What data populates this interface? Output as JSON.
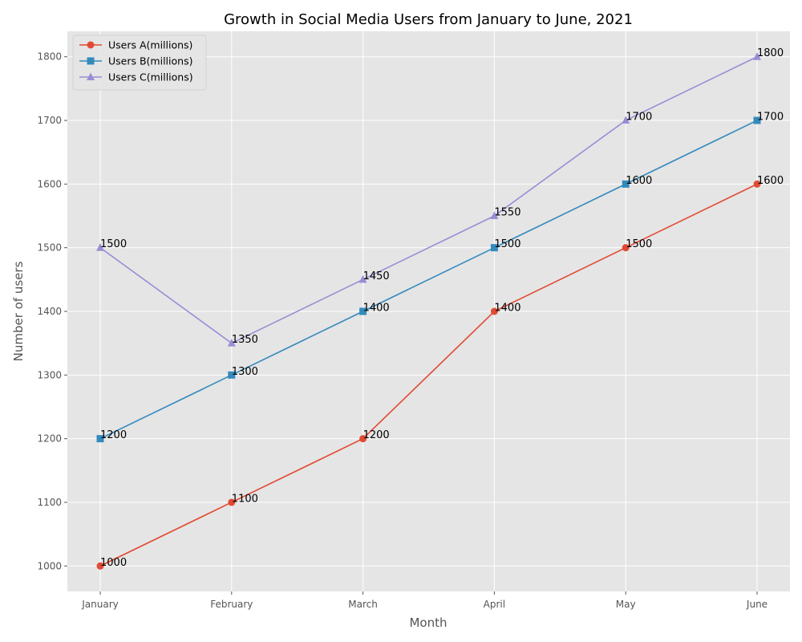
{
  "chart_data": {
    "type": "line",
    "title": "Growth in Social Media Users from January to June, 2021",
    "xlabel": "Month",
    "ylabel": "Number of users",
    "categories": [
      "January",
      "February",
      "March",
      "April",
      "May",
      "June"
    ],
    "ylim": [
      960,
      1840
    ],
    "yticks": [
      1000,
      1100,
      1200,
      1300,
      1400,
      1500,
      1600,
      1700,
      1800
    ],
    "grid": true,
    "legend_position": "top-left",
    "series": [
      {
        "name": "Users A(millions)",
        "values": [
          1000,
          1100,
          1200,
          1400,
          1500,
          1600
        ],
        "color": "#E24A33",
        "marker": "circle"
      },
      {
        "name": "Users B(millions)",
        "values": [
          1200,
          1300,
          1400,
          1500,
          1600,
          1700
        ],
        "color": "#348ABD",
        "marker": "square"
      },
      {
        "name": "Users C(millions)",
        "values": [
          1500,
          1350,
          1450,
          1550,
          1700,
          1800
        ],
        "color": "#988ED5",
        "marker": "triangle"
      }
    ]
  }
}
